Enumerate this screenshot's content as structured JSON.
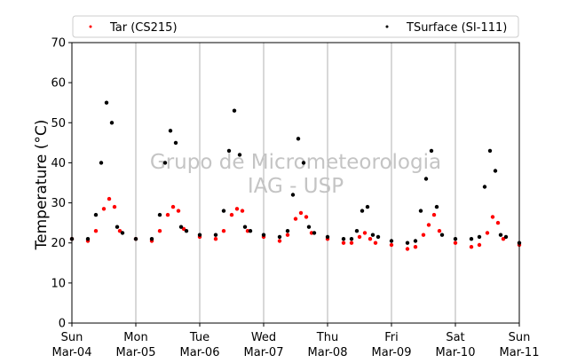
{
  "chart_data": {
    "type": "scatter",
    "ylabel": "Temperature (°C)",
    "ylim": [
      0,
      70
    ],
    "yticks": [
      0,
      10,
      20,
      30,
      40,
      50,
      60,
      70
    ],
    "xlim": [
      "2018-03-04T00:00",
      "2018-03-11T00:00"
    ],
    "xticks": [
      {
        "t": "2018-03-04T00:00",
        "day": "Sun",
        "date": "Mar-04"
      },
      {
        "t": "2018-03-05T00:00",
        "day": "Mon",
        "date": "Mar-05"
      },
      {
        "t": "2018-03-06T00:00",
        "day": "Tue",
        "date": "Mar-06"
      },
      {
        "t": "2018-03-07T00:00",
        "day": "Wed",
        "date": "Mar-07"
      },
      {
        "t": "2018-03-08T00:00",
        "day": "Thu",
        "date": "Mar-08"
      },
      {
        "t": "2018-03-09T00:00",
        "day": "Fri",
        "date": "Mar-09"
      },
      {
        "t": "2018-03-10T00:00",
        "day": "Sat",
        "date": "Mar-10"
      },
      {
        "t": "2018-03-11T00:00",
        "day": "Sun",
        "date": "Mar-11"
      }
    ],
    "grid": "vertical",
    "legend_placement": "top",
    "watermark": [
      "Grupo de Micrometeorologia",
      "IAG - USP"
    ],
    "series": [
      {
        "name": "Tar (CS215)",
        "color": "#ff0000",
        "x": [
          "2018-03-04T00:00",
          "2018-03-04T06:00",
          "2018-03-04T09:00",
          "2018-03-04T12:00",
          "2018-03-04T14:00",
          "2018-03-04T16:00",
          "2018-03-04T18:00",
          "2018-03-05T00:00",
          "2018-03-05T06:00",
          "2018-03-05T09:00",
          "2018-03-05T12:00",
          "2018-03-05T14:00",
          "2018-03-05T16:00",
          "2018-03-05T18:00",
          "2018-03-06T00:00",
          "2018-03-06T06:00",
          "2018-03-06T09:00",
          "2018-03-06T12:00",
          "2018-03-06T14:00",
          "2018-03-06T16:00",
          "2018-03-06T18:00",
          "2018-03-07T00:00",
          "2018-03-07T06:00",
          "2018-03-07T09:00",
          "2018-03-07T12:00",
          "2018-03-07T14:00",
          "2018-03-07T16:00",
          "2018-03-07T18:00",
          "2018-03-08T00:00",
          "2018-03-08T06:00",
          "2018-03-08T09:00",
          "2018-03-08T12:00",
          "2018-03-08T14:00",
          "2018-03-08T16:00",
          "2018-03-08T18:00",
          "2018-03-09T00:00",
          "2018-03-09T06:00",
          "2018-03-09T09:00",
          "2018-03-09T12:00",
          "2018-03-09T14:00",
          "2018-03-09T16:00",
          "2018-03-09T18:00",
          "2018-03-10T00:00",
          "2018-03-10T06:00",
          "2018-03-10T09:00",
          "2018-03-10T12:00",
          "2018-03-10T14:00",
          "2018-03-10T16:00",
          "2018-03-10T18:00",
          "2018-03-11T00:00"
        ],
        "y": [
          21,
          20.5,
          23,
          28.5,
          31,
          29,
          23,
          21,
          20.5,
          23,
          27,
          29,
          28,
          23.5,
          21.5,
          21,
          23,
          27,
          28.5,
          28,
          23,
          21.5,
          20.5,
          22,
          26,
          27.5,
          26.5,
          22.5,
          21,
          20,
          20,
          21.5,
          22.5,
          21,
          20,
          19.5,
          18.5,
          19,
          22,
          24.5,
          27,
          23,
          20,
          19,
          19.5,
          22.5,
          26.5,
          25,
          21,
          19.5
        ]
      },
      {
        "name": "TSurface (SI-111)",
        "color": "#000000",
        "x": [
          "2018-03-04T00:00",
          "2018-03-04T06:00",
          "2018-03-04T09:00",
          "2018-03-04T11:00",
          "2018-03-04T13:00",
          "2018-03-04T15:00",
          "2018-03-04T17:00",
          "2018-03-04T19:00",
          "2018-03-05T00:00",
          "2018-03-05T06:00",
          "2018-03-05T09:00",
          "2018-03-05T11:00",
          "2018-03-05T13:00",
          "2018-03-05T15:00",
          "2018-03-05T17:00",
          "2018-03-05T19:00",
          "2018-03-06T00:00",
          "2018-03-06T06:00",
          "2018-03-06T09:00",
          "2018-03-06T11:00",
          "2018-03-06T13:00",
          "2018-03-06T15:00",
          "2018-03-06T17:00",
          "2018-03-06T19:00",
          "2018-03-07T00:00",
          "2018-03-07T06:00",
          "2018-03-07T09:00",
          "2018-03-07T11:00",
          "2018-03-07T13:00",
          "2018-03-07T15:00",
          "2018-03-07T17:00",
          "2018-03-07T19:00",
          "2018-03-08T00:00",
          "2018-03-08T06:00",
          "2018-03-08T09:00",
          "2018-03-08T11:00",
          "2018-03-08T13:00",
          "2018-03-08T15:00",
          "2018-03-08T17:00",
          "2018-03-08T19:00",
          "2018-03-09T00:00",
          "2018-03-09T06:00",
          "2018-03-09T09:00",
          "2018-03-09T11:00",
          "2018-03-09T13:00",
          "2018-03-09T15:00",
          "2018-03-09T17:00",
          "2018-03-09T19:00",
          "2018-03-10T00:00",
          "2018-03-10T06:00",
          "2018-03-10T09:00",
          "2018-03-10T11:00",
          "2018-03-10T13:00",
          "2018-03-10T15:00",
          "2018-03-10T17:00",
          "2018-03-10T19:00",
          "2018-03-11T00:00"
        ],
        "y": [
          21,
          21,
          27,
          40,
          55,
          50,
          24,
          22.5,
          21,
          21,
          27,
          40,
          48,
          45,
          24,
          23,
          22,
          22,
          28,
          43,
          53,
          42,
          24,
          23,
          22,
          21.5,
          23,
          32,
          46,
          40,
          24,
          22.5,
          21.5,
          21,
          21,
          23,
          28,
          29,
          22,
          21.5,
          20.5,
          20,
          20.5,
          28,
          36,
          43,
          29,
          22,
          21,
          21,
          21.5,
          34,
          43,
          38,
          22,
          21.5,
          20
        ]
      }
    ]
  }
}
